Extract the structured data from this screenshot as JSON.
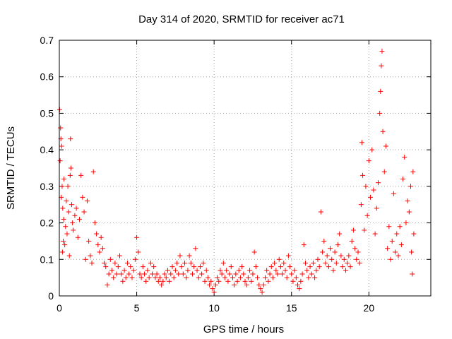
{
  "chart_data": {
    "type": "scatter",
    "title": "Day 314 of 2020, SRMTID for receiver ac71",
    "xlabel": "GPS time / hours",
    "ylabel": "SRMTID / TECUs",
    "xlim": [
      0,
      24
    ],
    "ylim": [
      0,
      0.7
    ],
    "xticks": [
      0,
      5,
      10,
      15,
      20
    ],
    "yticks": [
      0,
      0.1,
      0.2,
      0.3,
      0.4,
      0.5,
      0.6,
      0.7
    ],
    "xtick_labels": [
      "0",
      "5",
      "10",
      "15",
      "20"
    ],
    "ytick_labels": [
      "0",
      "0.1",
      "0.2",
      "0.3",
      "0.4",
      "0.5",
      "0.6",
      "0.7"
    ],
    "grid": true,
    "marker": "+",
    "color": "#ff0000",
    "series": [
      {
        "name": "SRMTID",
        "points": [
          [
            0.02,
            0.51
          ],
          [
            0.05,
            0.37
          ],
          [
            0.08,
            0.46
          ],
          [
            0.1,
            0.43
          ],
          [
            0.12,
            0.27
          ],
          [
            0.15,
            0.41
          ],
          [
            0.18,
            0.3
          ],
          [
            0.2,
            0.12
          ],
          [
            0.22,
            0.24
          ],
          [
            0.25,
            0.15
          ],
          [
            0.28,
            0.21
          ],
          [
            0.3,
            0.32
          ],
          [
            0.35,
            0.14
          ],
          [
            0.4,
            0.19
          ],
          [
            0.45,
            0.26
          ],
          [
            0.5,
            0.17
          ],
          [
            0.55,
            0.3
          ],
          [
            0.6,
            0.23
          ],
          [
            0.65,
            0.11
          ],
          [
            0.7,
            0.33
          ],
          [
            0.72,
            0.43
          ],
          [
            0.75,
            0.35
          ],
          [
            0.8,
            0.25
          ],
          [
            0.85,
            0.2
          ],
          [
            0.9,
            0.18
          ],
          [
            1.0,
            0.22
          ],
          [
            1.1,
            0.24
          ],
          [
            1.2,
            0.16
          ],
          [
            1.3,
            0.21
          ],
          [
            1.4,
            0.33
          ],
          [
            1.5,
            0.27
          ],
          [
            1.6,
            0.23
          ],
          [
            1.7,
            0.1
          ],
          [
            1.8,
            0.26
          ],
          [
            1.9,
            0.15
          ],
          [
            2.0,
            0.11
          ],
          [
            2.1,
            0.09
          ],
          [
            2.2,
            0.34
          ],
          [
            2.3,
            0.2
          ],
          [
            2.4,
            0.17
          ],
          [
            2.5,
            0.14
          ],
          [
            2.6,
            0.12
          ],
          [
            2.7,
            0.16
          ],
          [
            2.8,
            0.13
          ],
          [
            2.9,
            0.09
          ],
          [
            3.0,
            0.08
          ],
          [
            3.1,
            0.03
          ],
          [
            3.2,
            0.06
          ],
          [
            3.3,
            0.1
          ],
          [
            3.4,
            0.07
          ],
          [
            3.5,
            0.05
          ],
          [
            3.6,
            0.09
          ],
          [
            3.7,
            0.06
          ],
          [
            3.8,
            0.08
          ],
          [
            3.9,
            0.11
          ],
          [
            4.0,
            0.06
          ],
          [
            4.1,
            0.04
          ],
          [
            4.2,
            0.07
          ],
          [
            4.3,
            0.05
          ],
          [
            4.4,
            0.09
          ],
          [
            4.5,
            0.06
          ],
          [
            4.6,
            0.08
          ],
          [
            4.7,
            0.05
          ],
          [
            4.8,
            0.07
          ],
          [
            4.9,
            0.1
          ],
          [
            5.0,
            0.16
          ],
          [
            5.1,
            0.12
          ],
          [
            5.2,
            0.06
          ],
          [
            5.3,
            0.05
          ],
          [
            5.4,
            0.08
          ],
          [
            5.5,
            0.06
          ],
          [
            5.6,
            0.04
          ],
          [
            5.7,
            0.07
          ],
          [
            5.8,
            0.05
          ],
          [
            5.9,
            0.09
          ],
          [
            6.0,
            0.06
          ],
          [
            6.1,
            0.08
          ],
          [
            6.2,
            0.05
          ],
          [
            6.3,
            0.06
          ],
          [
            6.4,
            0.04
          ],
          [
            6.5,
            0.05
          ],
          [
            6.6,
            0.03
          ],
          [
            6.7,
            0.04
          ],
          [
            6.8,
            0.06
          ],
          [
            6.9,
            0.05
          ],
          [
            7.0,
            0.07
          ],
          [
            7.1,
            0.04
          ],
          [
            7.2,
            0.06
          ],
          [
            7.3,
            0.08
          ],
          [
            7.4,
            0.05
          ],
          [
            7.5,
            0.07
          ],
          [
            7.6,
            0.09
          ],
          [
            7.7,
            0.06
          ],
          [
            7.8,
            0.11
          ],
          [
            7.9,
            0.08
          ],
          [
            8.0,
            0.06
          ],
          [
            8.1,
            0.09
          ],
          [
            8.2,
            0.05
          ],
          [
            8.3,
            0.07
          ],
          [
            8.4,
            0.11
          ],
          [
            8.5,
            0.09
          ],
          [
            8.6,
            0.06
          ],
          [
            8.7,
            0.08
          ],
          [
            8.8,
            0.13
          ],
          [
            8.9,
            0.07
          ],
          [
            9.0,
            0.05
          ],
          [
            9.1,
            0.08
          ],
          [
            9.2,
            0.06
          ],
          [
            9.3,
            0.09
          ],
          [
            9.4,
            0.04
          ],
          [
            9.5,
            0.07
          ],
          [
            9.6,
            0.05
          ],
          [
            9.7,
            0.03
          ],
          [
            9.8,
            0.04
          ],
          [
            9.9,
            0.02
          ],
          [
            10.0,
            0.01
          ],
          [
            10.1,
            0.03
          ],
          [
            10.2,
            0.05
          ],
          [
            10.3,
            0.04
          ],
          [
            10.4,
            0.07
          ],
          [
            10.5,
            0.06
          ],
          [
            10.6,
            0.09
          ],
          [
            10.7,
            0.05
          ],
          [
            10.8,
            0.07
          ],
          [
            10.9,
            0.04
          ],
          [
            11.0,
            0.06
          ],
          [
            11.1,
            0.08
          ],
          [
            11.2,
            0.05
          ],
          [
            11.3,
            0.03
          ],
          [
            11.4,
            0.06
          ],
          [
            11.5,
            0.04
          ],
          [
            11.6,
            0.07
          ],
          [
            11.7,
            0.05
          ],
          [
            11.8,
            0.08
          ],
          [
            11.9,
            0.06
          ],
          [
            12.0,
            0.04
          ],
          [
            12.1,
            0.03
          ],
          [
            12.2,
            0.05
          ],
          [
            12.3,
            0.07
          ],
          [
            12.4,
            0.04
          ],
          [
            12.5,
            0.06
          ],
          [
            12.6,
            0.12
          ],
          [
            12.7,
            0.08
          ],
          [
            12.8,
            0.05
          ],
          [
            12.9,
            0.03
          ],
          [
            13.0,
            0.02
          ],
          [
            13.1,
            0.01
          ],
          [
            13.2,
            0.03
          ],
          [
            13.3,
            0.05
          ],
          [
            13.4,
            0.07
          ],
          [
            13.5,
            0.04
          ],
          [
            13.6,
            0.06
          ],
          [
            13.7,
            0.08
          ],
          [
            13.8,
            0.05
          ],
          [
            13.9,
            0.09
          ],
          [
            14.0,
            0.07
          ],
          [
            14.1,
            0.06
          ],
          [
            14.2,
            0.1
          ],
          [
            14.3,
            0.08
          ],
          [
            14.4,
            0.06
          ],
          [
            14.5,
            0.09
          ],
          [
            14.6,
            0.07
          ],
          [
            14.7,
            0.05
          ],
          [
            14.8,
            0.11
          ],
          [
            14.9,
            0.08
          ],
          [
            15.0,
            0.06
          ],
          [
            15.1,
            0.04
          ],
          [
            15.2,
            0.07
          ],
          [
            15.3,
            0.05
          ],
          [
            15.4,
            0.03
          ],
          [
            15.5,
            0.02
          ],
          [
            15.6,
            0.04
          ],
          [
            15.7,
            0.06
          ],
          [
            15.8,
            0.14
          ],
          [
            15.9,
            0.09
          ],
          [
            16.0,
            0.07
          ],
          [
            16.1,
            0.05
          ],
          [
            16.2,
            0.08
          ],
          [
            16.3,
            0.06
          ],
          [
            16.4,
            0.09
          ],
          [
            16.5,
            0.05
          ],
          [
            16.6,
            0.07
          ],
          [
            16.7,
            0.1
          ],
          [
            16.8,
            0.08
          ],
          [
            16.9,
            0.23
          ],
          [
            17.0,
            0.12
          ],
          [
            17.1,
            0.15
          ],
          [
            17.2,
            0.09
          ],
          [
            17.3,
            0.11
          ],
          [
            17.4,
            0.08
          ],
          [
            17.5,
            0.13
          ],
          [
            17.6,
            0.1
          ],
          [
            17.7,
            0.07
          ],
          [
            17.8,
            0.12
          ],
          [
            17.9,
            0.09
          ],
          [
            18.0,
            0.14
          ],
          [
            18.1,
            0.17
          ],
          [
            18.2,
            0.11
          ],
          [
            18.3,
            0.08
          ],
          [
            18.4,
            0.1
          ],
          [
            18.5,
            0.07
          ],
          [
            18.6,
            0.09
          ],
          [
            18.7,
            0.11
          ],
          [
            18.8,
            0.08
          ],
          [
            18.9,
            0.15
          ],
          [
            19.0,
            0.18
          ],
          [
            19.1,
            0.13
          ],
          [
            19.2,
            0.1
          ],
          [
            19.3,
            0.12
          ],
          [
            19.4,
            0.09
          ],
          [
            19.5,
            0.25
          ],
          [
            19.55,
            0.42
          ],
          [
            19.6,
            0.33
          ],
          [
            19.7,
            0.18
          ],
          [
            19.8,
            0.3
          ],
          [
            19.9,
            0.22
          ],
          [
            20.0,
            0.37
          ],
          [
            20.1,
            0.27
          ],
          [
            20.2,
            0.4
          ],
          [
            20.3,
            0.29
          ],
          [
            20.4,
            0.17
          ],
          [
            20.5,
            0.24
          ],
          [
            20.6,
            0.31
          ],
          [
            20.7,
            0.5
          ],
          [
            20.75,
            0.56
          ],
          [
            20.8,
            0.63
          ],
          [
            20.85,
            0.67
          ],
          [
            20.9,
            0.45
          ],
          [
            21.0,
            0.34
          ],
          [
            21.1,
            0.41
          ],
          [
            21.2,
            0.13
          ],
          [
            21.3,
            0.19
          ],
          [
            21.4,
            0.1
          ],
          [
            21.5,
            0.15
          ],
          [
            21.6,
            0.28
          ],
          [
            21.7,
            0.12
          ],
          [
            21.8,
            0.17
          ],
          [
            21.9,
            0.11
          ],
          [
            22.0,
            0.19
          ],
          [
            22.1,
            0.14
          ],
          [
            22.2,
            0.32
          ],
          [
            22.3,
            0.38
          ],
          [
            22.4,
            0.2
          ],
          [
            22.5,
            0.26
          ],
          [
            22.6,
            0.23
          ],
          [
            22.7,
            0.3
          ],
          [
            22.75,
            0.12
          ],
          [
            22.8,
            0.06
          ],
          [
            22.85,
            0.34
          ],
          [
            22.9,
            0.17
          ]
        ]
      }
    ]
  }
}
